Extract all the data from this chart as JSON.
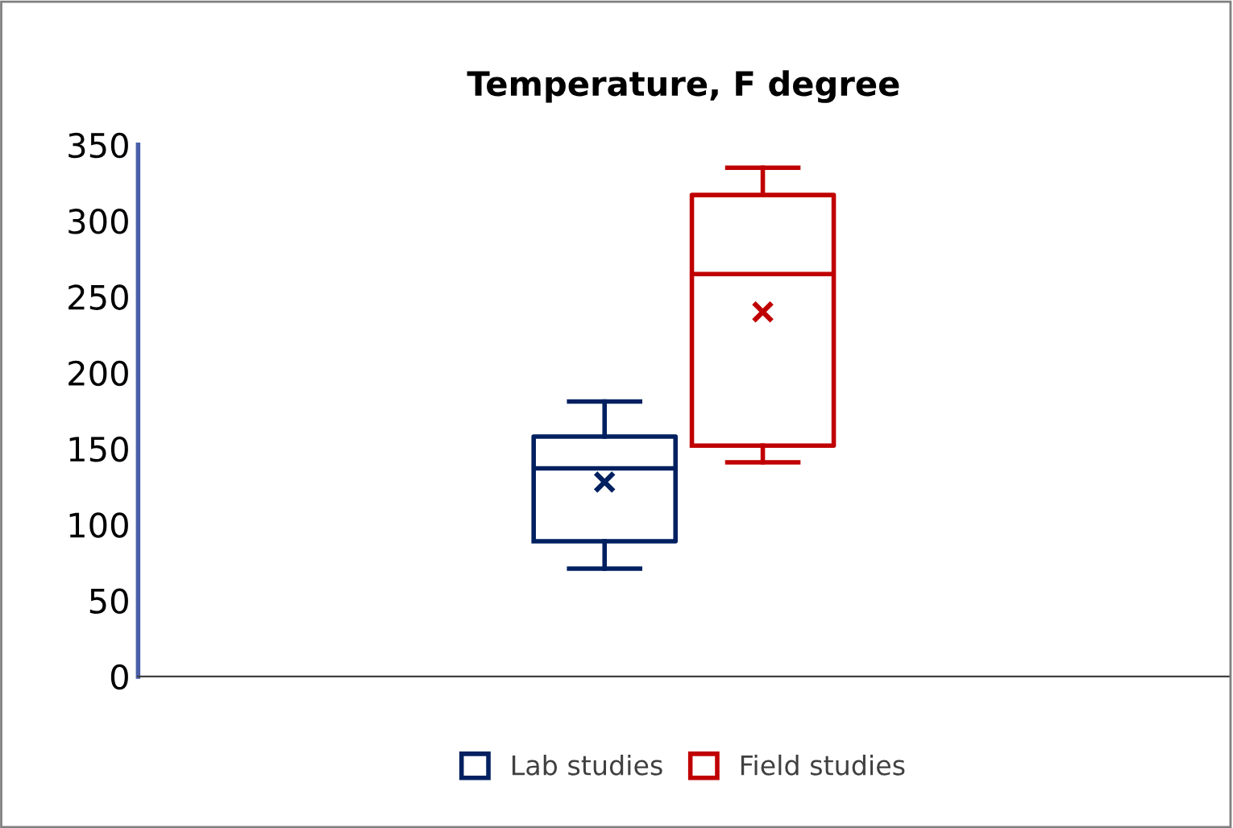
{
  "chart_data": {
    "type": "box",
    "title": "Temperature, F degree",
    "categories": [
      null
    ],
    "series": [
      {
        "name": "Lab studies",
        "color": "#002060",
        "boxes": [
          {
            "low": 71,
            "q1": 89,
            "median": 137,
            "q3": 158,
            "high": 181,
            "mean": 128
          }
        ]
      },
      {
        "name": "Field studies",
        "color": "#c00000",
        "boxes": [
          {
            "low": 141,
            "q1": 152,
            "median": 265,
            "q3": 317,
            "high": 335,
            "mean": 240
          }
        ]
      }
    ],
    "ylim": [
      0,
      350
    ],
    "yticks": [
      0,
      50,
      100,
      150,
      200,
      250,
      300,
      350
    ],
    "tick_labels": "y",
    "grid": false,
    "legend": "bottom",
    "marker": "cross"
  }
}
